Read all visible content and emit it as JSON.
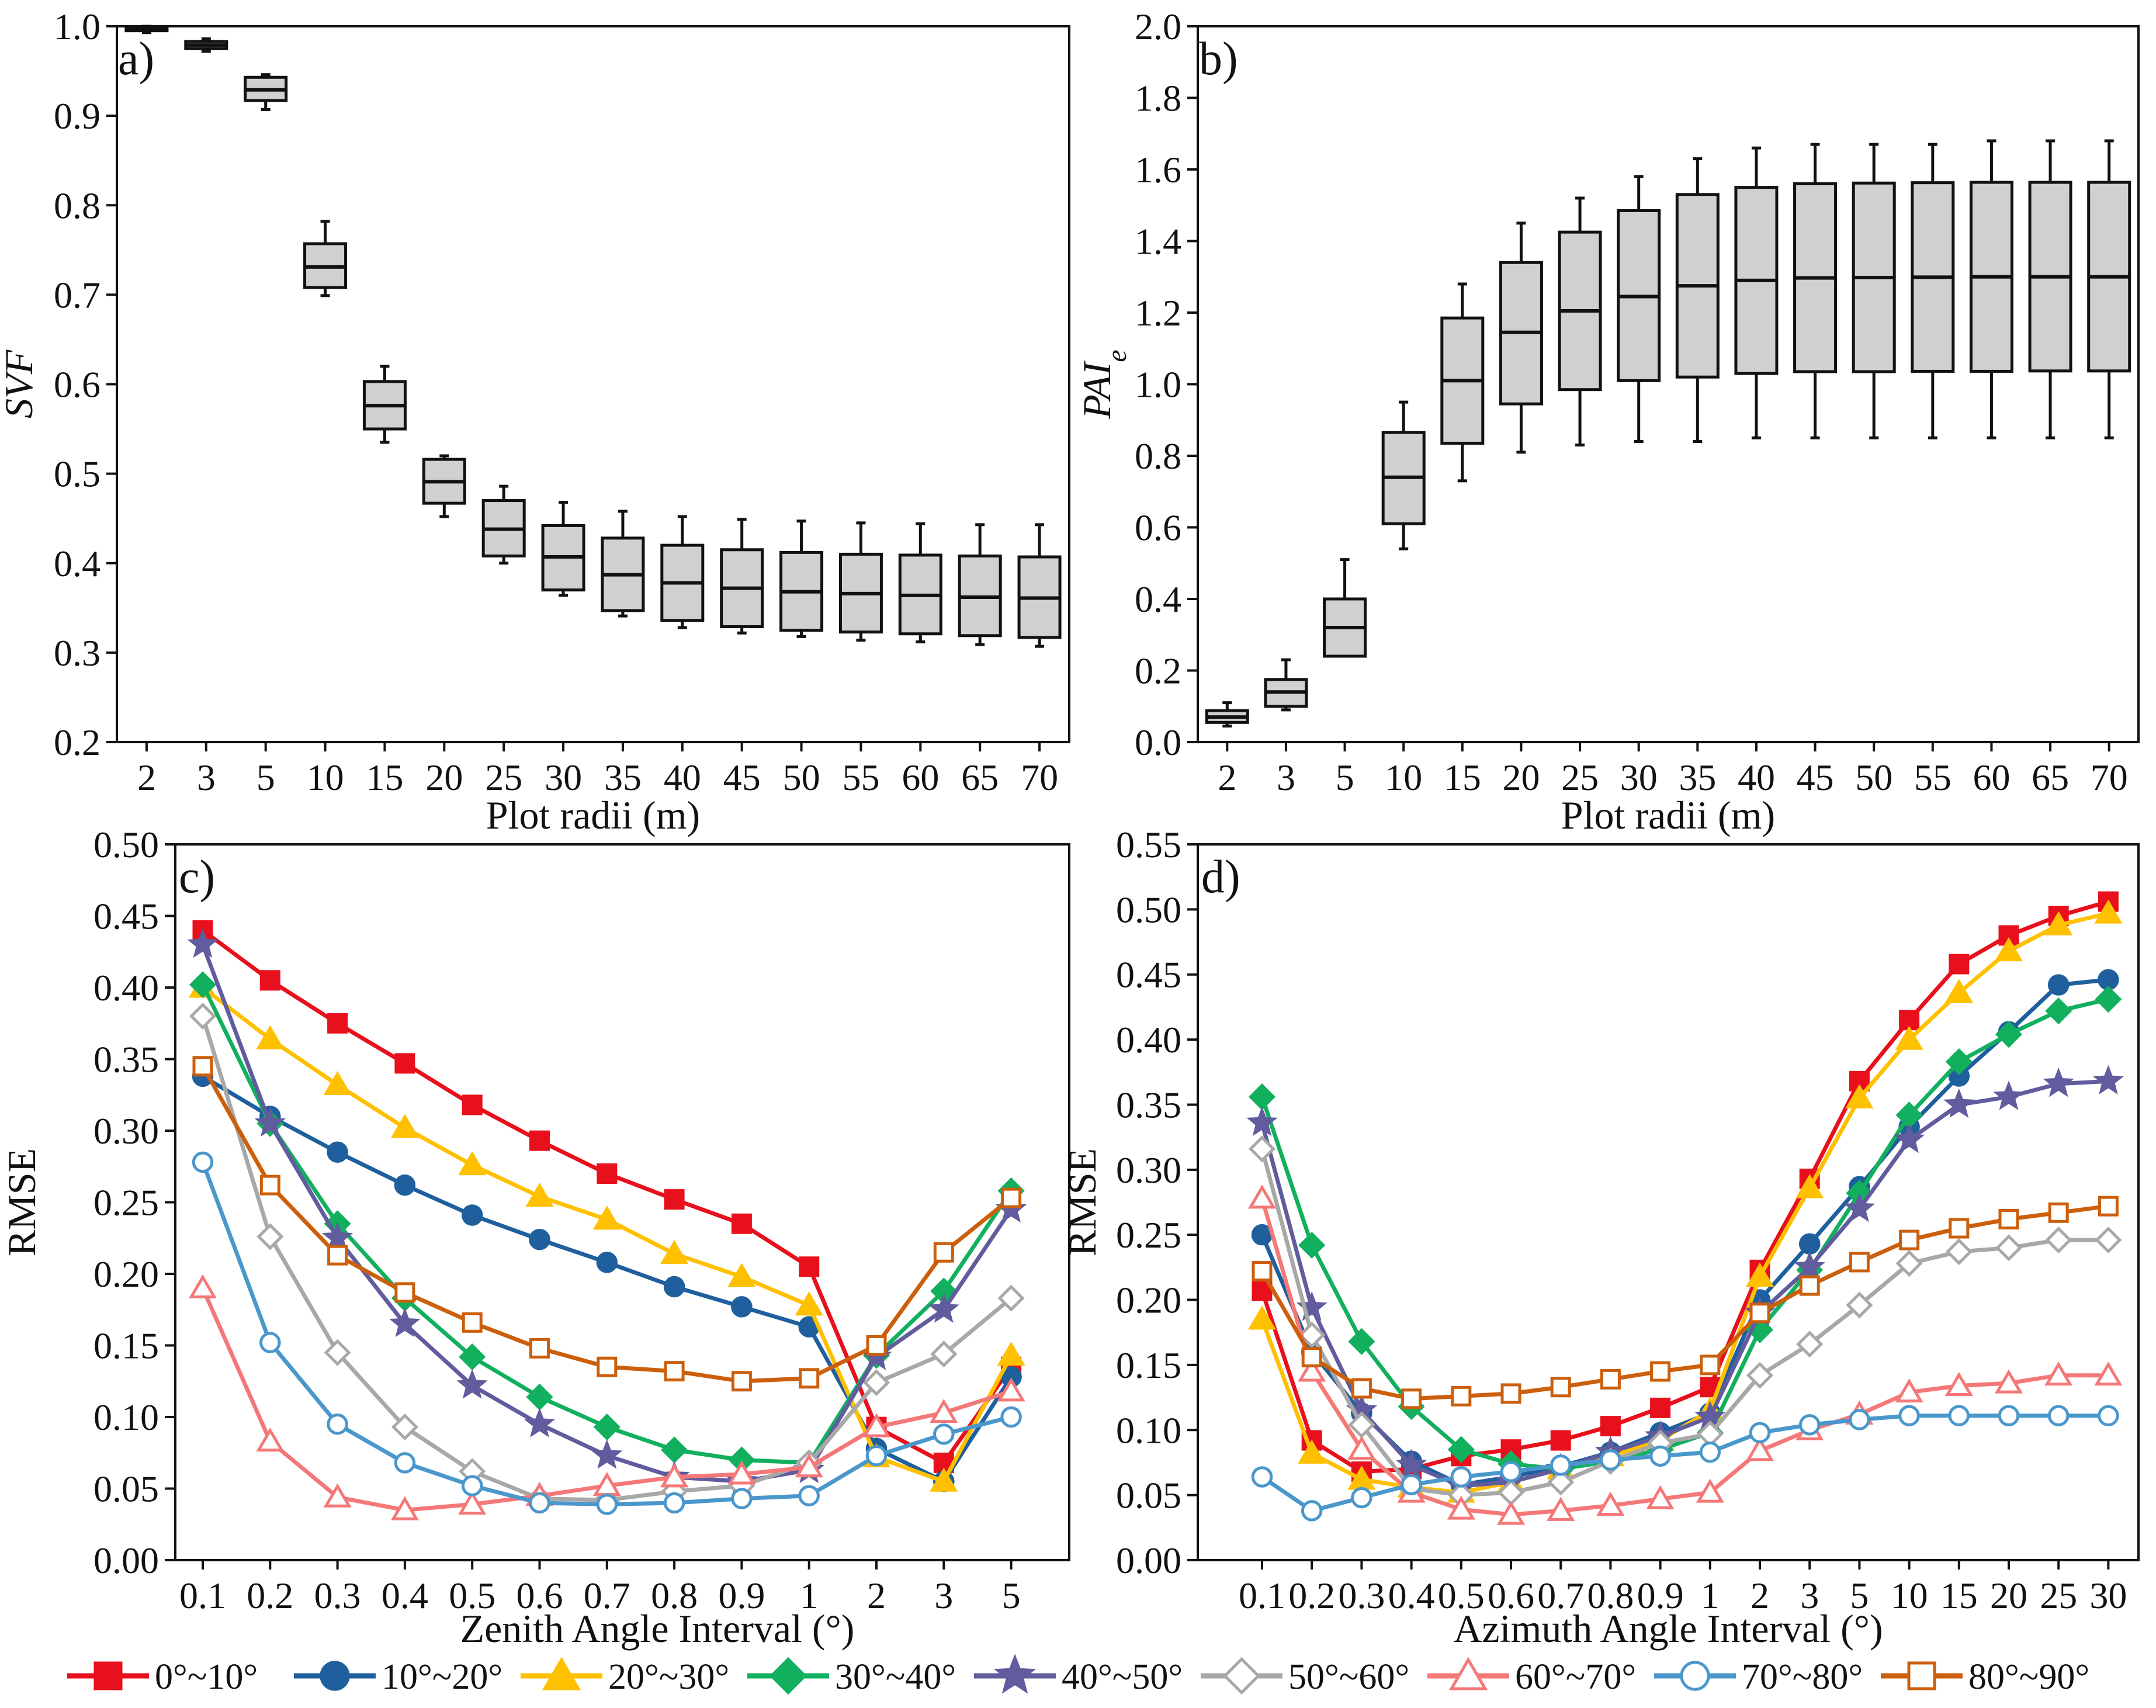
{
  "colors": {
    "box_fill": "#d0d0d0",
    "series": [
      "#e8101c",
      "#1f5f9e",
      "#ffc000",
      "#12b05e",
      "#605c9e",
      "#a8a8a8",
      "#f57878",
      "#4a97cc",
      "#cc5f0c"
    ]
  },
  "chart_data": [
    {
      "type": "box",
      "panel_label": "a)",
      "xlabel": "Plot radii (m)",
      "ylabel": "SVF",
      "ylim": [
        0.2,
        1.0
      ],
      "yticks": [
        "0.2",
        "0.3",
        "0.4",
        "0.5",
        "0.6",
        "0.7",
        "0.8",
        "0.9",
        "1.0"
      ],
      "categories": [
        "2",
        "3",
        "5",
        "10",
        "15",
        "20",
        "25",
        "30",
        "35",
        "40",
        "45",
        "50",
        "55",
        "60",
        "65",
        "70"
      ],
      "boxes": [
        {
          "min": 0.993,
          "q1": 0.995,
          "median": 0.997,
          "q3": 0.999,
          "max": 1.0
        },
        {
          "min": 0.972,
          "q1": 0.975,
          "median": 0.979,
          "q3": 0.983,
          "max": 0.986
        },
        {
          "min": 0.907,
          "q1": 0.917,
          "median": 0.929,
          "q3": 0.943,
          "max": 0.946
        },
        {
          "min": 0.699,
          "q1": 0.708,
          "median": 0.731,
          "q3": 0.757,
          "max": 0.782
        },
        {
          "min": 0.535,
          "q1": 0.55,
          "median": 0.576,
          "q3": 0.603,
          "max": 0.62
        },
        {
          "min": 0.452,
          "q1": 0.467,
          "median": 0.491,
          "q3": 0.516,
          "max": 0.52
        },
        {
          "min": 0.4,
          "q1": 0.408,
          "median": 0.438,
          "q3": 0.47,
          "max": 0.486
        },
        {
          "min": 0.364,
          "q1": 0.37,
          "median": 0.407,
          "q3": 0.442,
          "max": 0.468
        },
        {
          "min": 0.341,
          "q1": 0.347,
          "median": 0.387,
          "q3": 0.428,
          "max": 0.458
        },
        {
          "min": 0.328,
          "q1": 0.336,
          "median": 0.378,
          "q3": 0.42,
          "max": 0.452
        },
        {
          "min": 0.322,
          "q1": 0.329,
          "median": 0.372,
          "q3": 0.415,
          "max": 0.449
        },
        {
          "min": 0.318,
          "q1": 0.325,
          "median": 0.368,
          "q3": 0.412,
          "max": 0.447
        },
        {
          "min": 0.314,
          "q1": 0.323,
          "median": 0.366,
          "q3": 0.41,
          "max": 0.445
        },
        {
          "min": 0.312,
          "q1": 0.321,
          "median": 0.364,
          "q3": 0.409,
          "max": 0.444
        },
        {
          "min": 0.309,
          "q1": 0.319,
          "median": 0.362,
          "q3": 0.408,
          "max": 0.443
        },
        {
          "min": 0.307,
          "q1": 0.317,
          "median": 0.361,
          "q3": 0.407,
          "max": 0.443
        }
      ]
    },
    {
      "type": "box",
      "panel_label": "b)",
      "xlabel": "Plot radii (m)",
      "ylabel": "PAI",
      "ylabel_sub": "e",
      "ylim": [
        0.0,
        2.0
      ],
      "yticks": [
        "0.0",
        "0.2",
        "0.4",
        "0.6",
        "0.8",
        "1.0",
        "1.2",
        "1.4",
        "1.6",
        "1.8",
        "2.0"
      ],
      "categories": [
        "2",
        "3",
        "5",
        "10",
        "15",
        "20",
        "25",
        "30",
        "35",
        "40",
        "45",
        "50",
        "55",
        "60",
        "65",
        "70"
      ],
      "boxes": [
        {
          "min": 0.045,
          "q1": 0.055,
          "median": 0.07,
          "q3": 0.088,
          "max": 0.11
        },
        {
          "min": 0.09,
          "q1": 0.1,
          "median": 0.14,
          "q3": 0.175,
          "max": 0.23
        },
        {
          "min": 0.24,
          "q1": 0.24,
          "median": 0.32,
          "q3": 0.4,
          "max": 0.51
        },
        {
          "min": 0.54,
          "q1": 0.61,
          "median": 0.74,
          "q3": 0.865,
          "max": 0.95
        },
        {
          "min": 0.73,
          "q1": 0.835,
          "median": 1.01,
          "q3": 1.185,
          "max": 1.28
        },
        {
          "min": 0.81,
          "q1": 0.945,
          "median": 1.145,
          "q3": 1.34,
          "max": 1.45
        },
        {
          "min": 0.83,
          "q1": 0.985,
          "median": 1.205,
          "q3": 1.425,
          "max": 1.52
        },
        {
          "min": 0.84,
          "q1": 1.01,
          "median": 1.245,
          "q3": 1.485,
          "max": 1.58
        },
        {
          "min": 0.84,
          "q1": 1.02,
          "median": 1.275,
          "q3": 1.53,
          "max": 1.63
        },
        {
          "min": 0.85,
          "q1": 1.03,
          "median": 1.29,
          "q3": 1.55,
          "max": 1.66
        },
        {
          "min": 0.85,
          "q1": 1.035,
          "median": 1.297,
          "q3": 1.56,
          "max": 1.67
        },
        {
          "min": 0.85,
          "q1": 1.035,
          "median": 1.298,
          "q3": 1.562,
          "max": 1.67
        },
        {
          "min": 0.85,
          "q1": 1.036,
          "median": 1.299,
          "q3": 1.563,
          "max": 1.67
        },
        {
          "min": 0.85,
          "q1": 1.036,
          "median": 1.3,
          "q3": 1.564,
          "max": 1.68
        },
        {
          "min": 0.85,
          "q1": 1.037,
          "median": 1.3,
          "q3": 1.564,
          "max": 1.68
        },
        {
          "min": 0.85,
          "q1": 1.037,
          "median": 1.3,
          "q3": 1.564,
          "max": 1.68
        }
      ]
    },
    {
      "type": "line",
      "panel_label": "c)",
      "xlabel": "Zenith Angle Interval (°)",
      "ylabel": "RMSE",
      "ylim": [
        0.0,
        0.5
      ],
      "yticks": [
        "0.00",
        "0.05",
        "0.10",
        "0.15",
        "0.20",
        "0.25",
        "0.30",
        "0.35",
        "0.40",
        "0.45",
        "0.50"
      ],
      "categories": [
        "0.1",
        "0.2",
        "0.3",
        "0.4",
        "0.5",
        "0.6",
        "0.7",
        "0.8",
        "0.9",
        "1",
        "2",
        "3",
        "5"
      ],
      "series": [
        {
          "name": "0°~10°",
          "marker": "square-filled",
          "values": [
            0.44,
            0.405,
            0.375,
            0.347,
            0.318,
            0.293,
            0.27,
            0.252,
            0.235,
            0.205,
            0.093,
            0.068,
            0.135
          ]
        },
        {
          "name": "10°~20°",
          "marker": "circle-filled",
          "values": [
            0.338,
            0.31,
            0.285,
            0.262,
            0.241,
            0.224,
            0.208,
            0.191,
            0.177,
            0.163,
            0.078,
            0.055,
            0.128
          ]
        },
        {
          "name": "20°~30°",
          "marker": "triangle-filled",
          "values": [
            0.4,
            0.364,
            0.332,
            0.302,
            0.276,
            0.254,
            0.238,
            0.214,
            0.198,
            0.178,
            0.072,
            0.055,
            0.143
          ]
        },
        {
          "name": "30°~40°",
          "marker": "diamond-filled",
          "values": [
            0.402,
            0.305,
            0.235,
            0.183,
            0.142,
            0.114,
            0.093,
            0.077,
            0.07,
            0.068,
            0.143,
            0.188,
            0.258
          ]
        },
        {
          "name": "40°~50°",
          "marker": "star-filled",
          "values": [
            0.43,
            0.305,
            0.225,
            0.165,
            0.122,
            0.095,
            0.073,
            0.058,
            0.055,
            0.063,
            0.142,
            0.175,
            0.245
          ]
        },
        {
          "name": "50°~60°",
          "marker": "diamond-open",
          "values": [
            0.38,
            0.226,
            0.145,
            0.093,
            0.062,
            0.043,
            0.042,
            0.048,
            0.052,
            0.068,
            0.124,
            0.144,
            0.183
          ]
        },
        {
          "name": "60°~70°",
          "marker": "triangle-open",
          "values": [
            0.19,
            0.083,
            0.044,
            0.035,
            0.039,
            0.045,
            0.052,
            0.058,
            0.06,
            0.065,
            0.093,
            0.103,
            0.118
          ]
        },
        {
          "name": "70°~80°",
          "marker": "circle-open",
          "values": [
            0.278,
            0.152,
            0.095,
            0.068,
            0.052,
            0.04,
            0.039,
            0.04,
            0.043,
            0.045,
            0.073,
            0.088,
            0.1
          ]
        },
        {
          "name": "80°~90°",
          "marker": "square-open",
          "values": [
            0.345,
            0.262,
            0.213,
            0.187,
            0.166,
            0.148,
            0.135,
            0.132,
            0.125,
            0.127,
            0.15,
            0.215,
            0.253
          ]
        }
      ]
    },
    {
      "type": "line",
      "panel_label": "d)",
      "xlabel": "Azimuth Angle Interval (°)",
      "ylabel": "RMSE",
      "ylim": [
        0.0,
        0.55
      ],
      "yticks": [
        "0.00",
        "0.05",
        "0.10",
        "0.15",
        "0.20",
        "0.25",
        "0.30",
        "0.35",
        "0.40",
        "0.45",
        "0.50",
        "0.55"
      ],
      "categories": [
        "0.1",
        "0.2",
        "0.3",
        "0.4",
        "0.5",
        "0.6",
        "0.7",
        "0.8",
        "0.9",
        "1",
        "2",
        "3",
        "5",
        "10",
        "15",
        "20",
        "25",
        "30"
      ],
      "series": [
        {
          "name": "0°~10°",
          "marker": "square-filled",
          "values": [
            0.207,
            0.092,
            0.068,
            0.07,
            0.08,
            0.085,
            0.092,
            0.103,
            0.117,
            0.133,
            0.223,
            0.293,
            0.368,
            0.415,
            0.458,
            0.48,
            0.495,
            0.506
          ]
        },
        {
          "name": "10°~20°",
          "marker": "circle-filled",
          "values": [
            0.25,
            0.16,
            0.113,
            0.076,
            0.058,
            0.064,
            0.072,
            0.083,
            0.098,
            0.113,
            0.2,
            0.243,
            0.287,
            0.333,
            0.372,
            0.406,
            0.442,
            0.446
          ]
        },
        {
          "name": "20°~30°",
          "marker": "triangle-filled",
          "values": [
            0.185,
            0.082,
            0.062,
            0.056,
            0.052,
            0.06,
            0.07,
            0.08,
            0.092,
            0.115,
            0.218,
            0.286,
            0.355,
            0.4,
            0.436,
            0.468,
            0.488,
            0.497
          ]
        },
        {
          "name": "30°~40°",
          "marker": "diamond-filled",
          "values": [
            0.356,
            0.242,
            0.168,
            0.118,
            0.085,
            0.074,
            0.07,
            0.076,
            0.085,
            0.098,
            0.177,
            0.223,
            0.282,
            0.342,
            0.383,
            0.404,
            0.422,
            0.431
          ]
        },
        {
          "name": "40°~50°",
          "marker": "star-filled",
          "values": [
            0.336,
            0.194,
            0.115,
            0.073,
            0.057,
            0.06,
            0.07,
            0.083,
            0.095,
            0.11,
            0.19,
            0.225,
            0.27,
            0.323,
            0.35,
            0.356,
            0.366,
            0.368
          ]
        },
        {
          "name": "50°~60°",
          "marker": "diamond-open",
          "values": [
            0.316,
            0.173,
            0.104,
            0.055,
            0.05,
            0.052,
            0.06,
            0.076,
            0.09,
            0.097,
            0.142,
            0.166,
            0.196,
            0.228,
            0.237,
            0.24,
            0.246,
            0.246
          ]
        },
        {
          "name": "60°~70°",
          "marker": "triangle-open",
          "values": [
            0.278,
            0.145,
            0.085,
            0.052,
            0.039,
            0.035,
            0.038,
            0.042,
            0.047,
            0.052,
            0.084,
            0.1,
            0.112,
            0.129,
            0.134,
            0.136,
            0.142,
            0.142
          ]
        },
        {
          "name": "70°~80°",
          "marker": "circle-open",
          "values": [
            0.064,
            0.038,
            0.048,
            0.058,
            0.064,
            0.068,
            0.073,
            0.077,
            0.08,
            0.083,
            0.098,
            0.104,
            0.108,
            0.111,
            0.111,
            0.111,
            0.111,
            0.111
          ]
        },
        {
          "name": "80°~90°",
          "marker": "square-open",
          "values": [
            0.222,
            0.156,
            0.132,
            0.124,
            0.126,
            0.128,
            0.133,
            0.139,
            0.145,
            0.15,
            0.19,
            0.211,
            0.229,
            0.246,
            0.255,
            0.262,
            0.267,
            0.272
          ]
        }
      ]
    }
  ]
}
